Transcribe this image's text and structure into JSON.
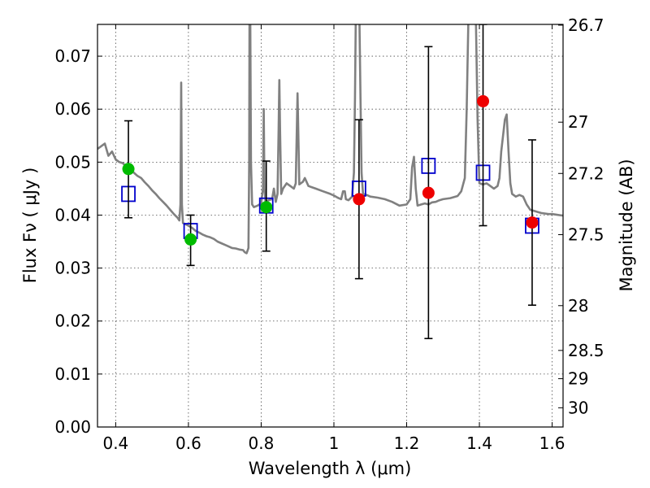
{
  "chart_data": {
    "type": "scatter",
    "xlabel": "Wavelength  λ (μm)",
    "ylabel": "Flux  Fν  ( μJy )",
    "ylabel_right": "Magnitude (AB)",
    "xlim": [
      0.35,
      1.63
    ],
    "ylim": [
      0.0,
      0.076
    ],
    "grid": true,
    "x_ticks": [
      0.4,
      0.6,
      0.8,
      1.0,
      1.2,
      1.4,
      1.6
    ],
    "x_tick_labels": [
      "0.4",
      "0.6",
      "0.8",
      "1",
      "1.2",
      "1.4",
      "1.6"
    ],
    "y_ticks": [
      0.0,
      0.01,
      0.02,
      0.03,
      0.04,
      0.05,
      0.06,
      0.07
    ],
    "y_tick_labels": [
      "0.00",
      "0.01",
      "0.02",
      "0.03",
      "0.04",
      "0.05",
      "0.06",
      "0.07"
    ],
    "right_ticks": [
      {
        "label": "26.7",
        "mag": 26.7
      },
      {
        "label": "27",
        "mag": 27.0
      },
      {
        "label": "27.2",
        "mag": 27.2
      },
      {
        "label": "27.5",
        "mag": 27.5
      },
      {
        "label": "28",
        "mag": 28.0
      },
      {
        "label": "28.5",
        "mag": 28.5
      },
      {
        "label": "29",
        "mag": 29.0
      },
      {
        "label": "30",
        "mag": 30.0
      }
    ],
    "colors": {
      "spectrum": "#808080",
      "model_box": "#0000cc",
      "green_point": "#00bb00",
      "red_point": "#ee0000",
      "errorbar": "#000000"
    },
    "observed_points": [
      {
        "x": 0.435,
        "y": 0.0487,
        "yerr_low": 0.0395,
        "yerr_high": 0.0578,
        "color": "green"
      },
      {
        "x": 0.606,
        "y": 0.0354,
        "yerr_low": 0.0305,
        "yerr_high": 0.04,
        "color": "green"
      },
      {
        "x": 0.814,
        "y": 0.0415,
        "yerr_low": 0.0332,
        "yerr_high": 0.0502,
        "color": "green"
      },
      {
        "x": 1.069,
        "y": 0.043,
        "yerr_low": 0.028,
        "yerr_high": 0.058,
        "color": "red"
      },
      {
        "x": 1.26,
        "y": 0.0442,
        "yerr_low": 0.0167,
        "yerr_high": 0.0718,
        "color": "red"
      },
      {
        "x": 1.41,
        "y": 0.0615,
        "yerr_low": 0.038,
        "yerr_high": 0.076,
        "color": "red"
      },
      {
        "x": 1.545,
        "y": 0.0386,
        "yerr_low": 0.023,
        "yerr_high": 0.0542,
        "color": "red"
      }
    ],
    "model_photometry": [
      {
        "x": 0.435,
        "y": 0.044
      },
      {
        "x": 0.606,
        "y": 0.037
      },
      {
        "x": 0.814,
        "y": 0.0418
      },
      {
        "x": 1.069,
        "y": 0.045
      },
      {
        "x": 1.26,
        "y": 0.0493
      },
      {
        "x": 1.41,
        "y": 0.048
      },
      {
        "x": 1.545,
        "y": 0.038
      }
    ],
    "spectrum": [
      [
        0.35,
        0.0525
      ],
      [
        0.36,
        0.053
      ],
      [
        0.37,
        0.0535
      ],
      [
        0.38,
        0.0512
      ],
      [
        0.39,
        0.052
      ],
      [
        0.4,
        0.0505
      ],
      [
        0.41,
        0.05
      ],
      [
        0.42,
        0.0498
      ],
      [
        0.43,
        0.049
      ],
      [
        0.44,
        0.0488
      ],
      [
        0.45,
        0.048
      ],
      [
        0.46,
        0.0474
      ],
      [
        0.47,
        0.047
      ],
      [
        0.48,
        0.0462
      ],
      [
        0.49,
        0.0455
      ],
      [
        0.5,
        0.0447
      ],
      [
        0.51,
        0.044
      ],
      [
        0.52,
        0.0432
      ],
      [
        0.53,
        0.0425
      ],
      [
        0.54,
        0.0418
      ],
      [
        0.55,
        0.041
      ],
      [
        0.56,
        0.0402
      ],
      [
        0.57,
        0.0395
      ],
      [
        0.575,
        0.039
      ],
      [
        0.578,
        0.042
      ],
      [
        0.58,
        0.065
      ],
      [
        0.582,
        0.042
      ],
      [
        0.585,
        0.0385
      ],
      [
        0.6,
        0.038
      ],
      [
        0.61,
        0.0376
      ],
      [
        0.62,
        0.037
      ],
      [
        0.63,
        0.0367
      ],
      [
        0.64,
        0.0363
      ],
      [
        0.65,
        0.036
      ],
      [
        0.66,
        0.0358
      ],
      [
        0.67,
        0.0355
      ],
      [
        0.68,
        0.035
      ],
      [
        0.69,
        0.0347
      ],
      [
        0.7,
        0.0344
      ],
      [
        0.71,
        0.0341
      ],
      [
        0.72,
        0.0338
      ],
      [
        0.73,
        0.0337
      ],
      [
        0.74,
        0.0335
      ],
      [
        0.75,
        0.0334
      ],
      [
        0.755,
        0.033
      ],
      [
        0.76,
        0.0328
      ],
      [
        0.765,
        0.0338
      ],
      [
        0.767,
        0.05
      ],
      [
        0.768,
        0.078
      ],
      [
        0.77,
        0.078
      ],
      [
        0.772,
        0.05
      ],
      [
        0.775,
        0.042
      ],
      [
        0.78,
        0.0415
      ],
      [
        0.79,
        0.0418
      ],
      [
        0.8,
        0.0422
      ],
      [
        0.805,
        0.045
      ],
      [
        0.807,
        0.06
      ],
      [
        0.809,
        0.045
      ],
      [
        0.812,
        0.0425
      ],
      [
        0.82,
        0.0428
      ],
      [
        0.83,
        0.043
      ],
      [
        0.835,
        0.045
      ],
      [
        0.84,
        0.0425
      ],
      [
        0.845,
        0.044
      ],
      [
        0.848,
        0.056
      ],
      [
        0.85,
        0.0655
      ],
      [
        0.852,
        0.056
      ],
      [
        0.855,
        0.044
      ],
      [
        0.86,
        0.045
      ],
      [
        0.87,
        0.046
      ],
      [
        0.88,
        0.0455
      ],
      [
        0.89,
        0.045
      ],
      [
        0.895,
        0.046
      ],
      [
        0.898,
        0.056
      ],
      [
        0.9,
        0.063
      ],
      [
        0.902,
        0.056
      ],
      [
        0.905,
        0.0458
      ],
      [
        0.915,
        0.0463
      ],
      [
        0.92,
        0.047
      ],
      [
        0.93,
        0.0455
      ],
      [
        0.95,
        0.045
      ],
      [
        0.97,
        0.0445
      ],
      [
        0.99,
        0.044
      ],
      [
        1.0,
        0.0437
      ],
      [
        1.01,
        0.0433
      ],
      [
        1.02,
        0.043
      ],
      [
        1.025,
        0.0445
      ],
      [
        1.03,
        0.0445
      ],
      [
        1.033,
        0.043
      ],
      [
        1.04,
        0.0428
      ],
      [
        1.05,
        0.0435
      ],
      [
        1.055,
        0.048
      ],
      [
        1.058,
        0.062
      ],
      [
        1.06,
        0.076
      ],
      [
        1.065,
        0.078
      ],
      [
        1.07,
        0.078
      ],
      [
        1.073,
        0.062
      ],
      [
        1.076,
        0.048
      ],
      [
        1.08,
        0.044
      ],
      [
        1.09,
        0.0438
      ],
      [
        1.1,
        0.0435
      ],
      [
        1.12,
        0.0433
      ],
      [
        1.14,
        0.043
      ],
      [
        1.16,
        0.0425
      ],
      [
        1.18,
        0.0418
      ],
      [
        1.2,
        0.042
      ],
      [
        1.21,
        0.043
      ],
      [
        1.215,
        0.049
      ],
      [
        1.22,
        0.051
      ],
      [
        1.225,
        0.045
      ],
      [
        1.23,
        0.0418
      ],
      [
        1.24,
        0.042
      ],
      [
        1.25,
        0.0422
      ],
      [
        1.26,
        0.042
      ],
      [
        1.27,
        0.0424
      ],
      [
        1.28,
        0.0425
      ],
      [
        1.29,
        0.0428
      ],
      [
        1.3,
        0.043
      ],
      [
        1.32,
        0.0432
      ],
      [
        1.34,
        0.0436
      ],
      [
        1.35,
        0.0445
      ],
      [
        1.36,
        0.047
      ],
      [
        1.365,
        0.06
      ],
      [
        1.37,
        0.078
      ],
      [
        1.38,
        0.078
      ],
      [
        1.385,
        0.078
      ],
      [
        1.39,
        0.078
      ],
      [
        1.395,
        0.058
      ],
      [
        1.4,
        0.046
      ],
      [
        1.41,
        0.0458
      ],
      [
        1.42,
        0.046
      ],
      [
        1.43,
        0.0455
      ],
      [
        1.44,
        0.045
      ],
      [
        1.45,
        0.0455
      ],
      [
        1.455,
        0.047
      ],
      [
        1.46,
        0.052
      ],
      [
        1.47,
        0.058
      ],
      [
        1.475,
        0.059
      ],
      [
        1.48,
        0.052
      ],
      [
        1.485,
        0.046
      ],
      [
        1.49,
        0.044
      ],
      [
        1.5,
        0.0435
      ],
      [
        1.51,
        0.0438
      ],
      [
        1.52,
        0.0435
      ],
      [
        1.53,
        0.042
      ],
      [
        1.54,
        0.041
      ],
      [
        1.55,
        0.0408
      ],
      [
        1.56,
        0.0406
      ],
      [
        1.57,
        0.0404
      ],
      [
        1.58,
        0.0403
      ],
      [
        1.59,
        0.0402
      ],
      [
        1.6,
        0.0402
      ],
      [
        1.61,
        0.0401
      ],
      [
        1.62,
        0.04
      ],
      [
        1.63,
        0.0399
      ]
    ]
  }
}
